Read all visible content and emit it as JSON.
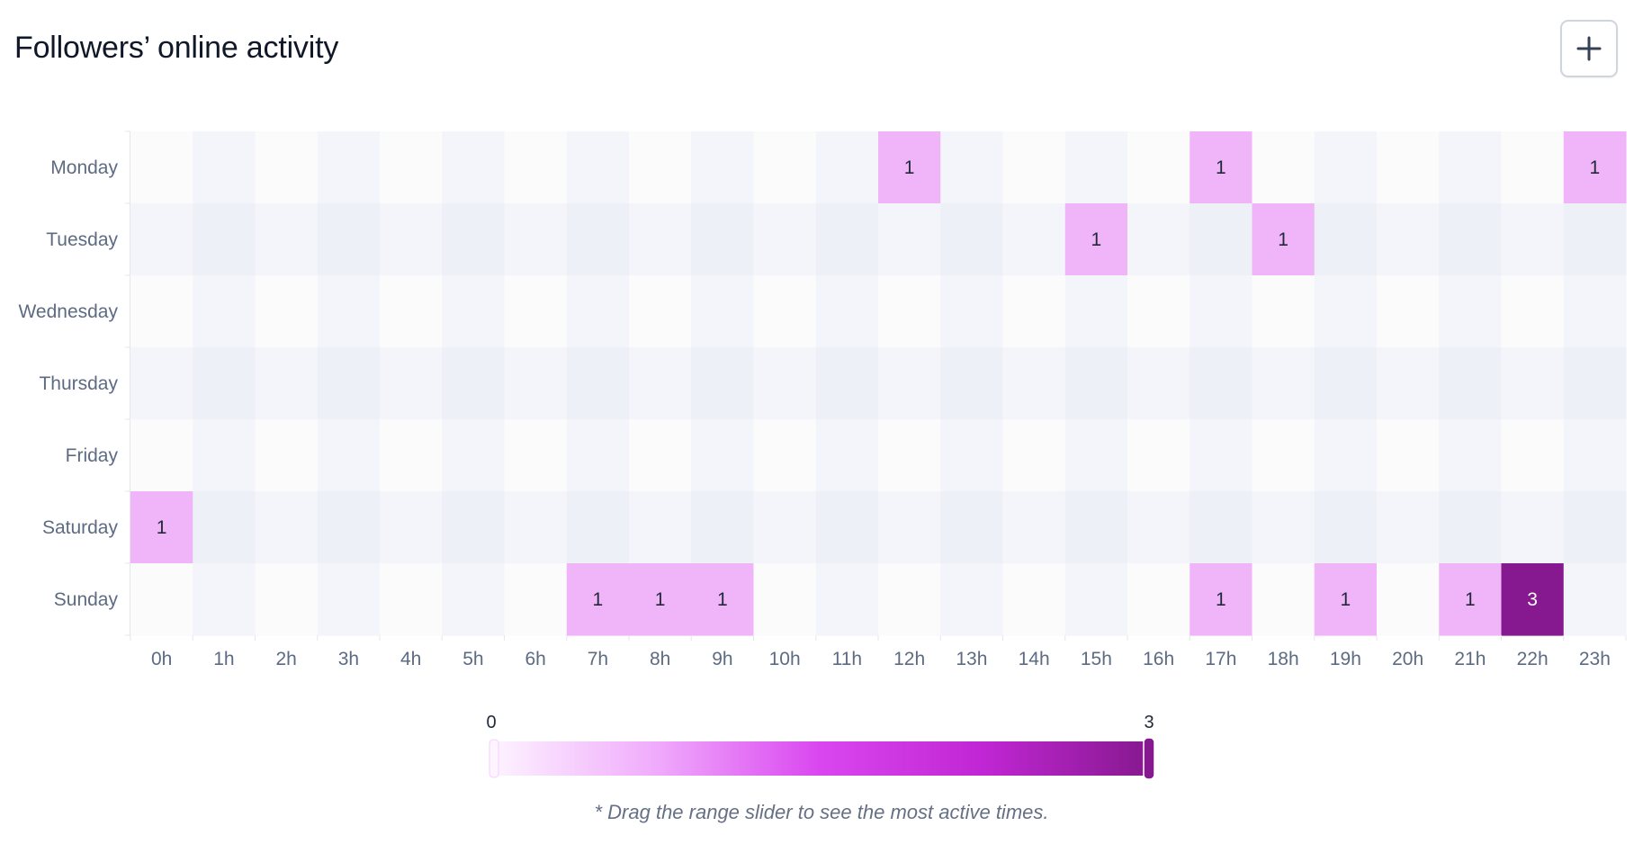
{
  "header": {
    "title": "Followers’ online activity",
    "add_icon": "plus-icon"
  },
  "chart_data": {
    "type": "heatmap",
    "title": "Followers’ online activity",
    "y_categories": [
      "Monday",
      "Tuesday",
      "Wednesday",
      "Thursday",
      "Friday",
      "Saturday",
      "Sunday"
    ],
    "x_categories": [
      "0h",
      "1h",
      "2h",
      "3h",
      "4h",
      "5h",
      "6h",
      "7h",
      "8h",
      "9h",
      "10h",
      "11h",
      "12h",
      "13h",
      "14h",
      "15h",
      "16h",
      "17h",
      "18h",
      "19h",
      "20h",
      "21h",
      "22h",
      "23h"
    ],
    "values": [
      [
        0,
        0,
        0,
        0,
        0,
        0,
        0,
        0,
        0,
        0,
        0,
        0,
        1,
        0,
        0,
        0,
        0,
        1,
        0,
        0,
        0,
        0,
        0,
        1
      ],
      [
        0,
        0,
        0,
        0,
        0,
        0,
        0,
        0,
        0,
        0,
        0,
        0,
        0,
        0,
        0,
        1,
        0,
        0,
        1,
        0,
        0,
        0,
        0,
        0
      ],
      [
        0,
        0,
        0,
        0,
        0,
        0,
        0,
        0,
        0,
        0,
        0,
        0,
        0,
        0,
        0,
        0,
        0,
        0,
        0,
        0,
        0,
        0,
        0,
        0
      ],
      [
        0,
        0,
        0,
        0,
        0,
        0,
        0,
        0,
        0,
        0,
        0,
        0,
        0,
        0,
        0,
        0,
        0,
        0,
        0,
        0,
        0,
        0,
        0,
        0
      ],
      [
        0,
        0,
        0,
        0,
        0,
        0,
        0,
        0,
        0,
        0,
        0,
        0,
        0,
        0,
        0,
        0,
        0,
        0,
        0,
        0,
        0,
        0,
        0,
        0
      ],
      [
        1,
        0,
        0,
        0,
        0,
        0,
        0,
        0,
        0,
        0,
        0,
        0,
        0,
        0,
        0,
        0,
        0,
        0,
        0,
        0,
        0,
        0,
        0,
        0
      ],
      [
        0,
        0,
        0,
        0,
        0,
        0,
        0,
        1,
        1,
        1,
        0,
        0,
        0,
        0,
        0,
        0,
        0,
        1,
        0,
        1,
        0,
        1,
        3,
        0
      ]
    ],
    "value_range": [
      0,
      3
    ],
    "grid": false,
    "legend": {
      "type": "continuous-range-slider",
      "placement": "bottom-center",
      "min_label": "0",
      "max_label": "3"
    },
    "colors": {
      "empty_even_column": "#fbfbfc",
      "empty_odd_column": "#f4f5fa",
      "empty_even_column_alt_row": "#f4f5fa",
      "empty_odd_column_alt_row": "#eef0f7",
      "level_1": "#f0b5f9",
      "level_3": "#86198f",
      "gradient_stops": [
        "#fdf4ff",
        "#f0abfc",
        "#d946ef",
        "#c026d3",
        "#86198f"
      ],
      "label_dark": "#1f2937",
      "label_light": "#ffffff",
      "axis_label": "#5d6b82"
    }
  },
  "footer": {
    "hint": "* Drag the range slider to see the most active times."
  }
}
